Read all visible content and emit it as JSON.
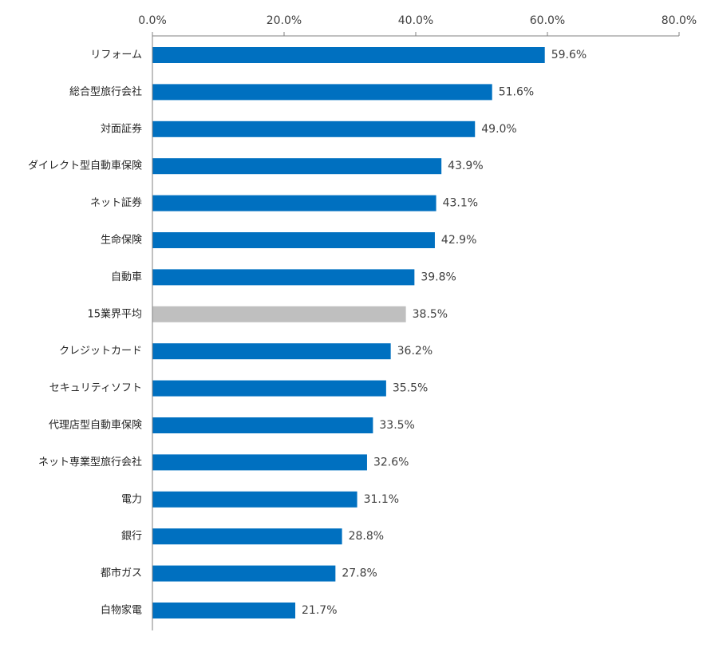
{
  "chart_data": {
    "type": "bar",
    "orientation": "horizontal",
    "title": "",
    "xlabel": "",
    "ylabel": "",
    "xlim": [
      0,
      80
    ],
    "ticks": [
      0,
      20,
      40,
      60,
      80
    ],
    "tick_labels": [
      "0.0%",
      "20.0%",
      "40.0%",
      "60.0%",
      "80.0%"
    ],
    "axis_position": "top",
    "grid": true,
    "legend": "none",
    "categories": [
      "リフォーム",
      "総合型旅行会社",
      "対面証券",
      "ダイレクト型自動車保険",
      "ネット証券",
      "生命保険",
      "自動車",
      "15業界平均",
      "クレジットカード",
      "セキュリティソフト",
      "代理店型自動車保険",
      "ネット専業型旅行会社",
      "電力",
      "銀行",
      "都市ガス",
      "白物家電"
    ],
    "values": [
      59.6,
      51.6,
      49.0,
      43.9,
      43.1,
      42.9,
      39.8,
      38.5,
      36.2,
      35.5,
      33.5,
      32.6,
      31.1,
      28.8,
      27.8,
      21.7
    ],
    "value_labels": [
      "59.6%",
      "51.6%",
      "49.0%",
      "43.9%",
      "43.1%",
      "42.9%",
      "39.8%",
      "38.5%",
      "36.2%",
      "35.5%",
      "33.5%",
      "32.6%",
      "31.1%",
      "28.8%",
      "27.8%",
      "21.7%"
    ],
    "highlight_index": 7,
    "colors": {
      "bar": "#0070C0",
      "highlight": "#BFBFBF",
      "grid": "#D9D9D9",
      "axis": "#808080"
    }
  }
}
